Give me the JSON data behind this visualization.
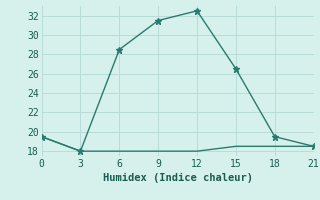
{
  "line1_x": [
    0,
    3,
    6,
    9,
    12,
    15,
    18,
    21
  ],
  "line1_y": [
    19.5,
    18,
    28.5,
    31.5,
    32.5,
    26.5,
    19.5,
    18.5
  ],
  "line2_x": [
    0,
    3,
    6,
    9,
    12,
    15,
    18,
    21
  ],
  "line2_y": [
    19.5,
    18,
    18,
    18,
    18,
    18.5,
    18.5,
    18.5
  ],
  "line_color": "#2a7a6e",
  "marker": "*",
  "marker_size": 5,
  "xlabel": "Humidex (Indice chaleur)",
  "xlim": [
    0,
    21
  ],
  "ylim": [
    17.5,
    33
  ],
  "xticks": [
    0,
    3,
    6,
    9,
    12,
    15,
    18,
    21
  ],
  "yticks": [
    18,
    20,
    22,
    24,
    26,
    28,
    30,
    32
  ],
  "bg_color": "#d6f0ec",
  "grid_color": "#b8ddd8",
  "font_color": "#1a5c50",
  "tick_font_size": 7,
  "xlabel_font_size": 7.5
}
